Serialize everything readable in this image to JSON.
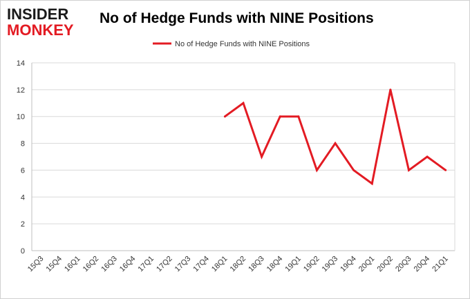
{
  "logo": {
    "line1": "INSIDER",
    "line2": "MONKEY"
  },
  "chart_data": {
    "type": "line",
    "title": "No of Hedge Funds with NINE Positions",
    "categories": [
      "15Q3",
      "15Q4",
      "16Q1",
      "16Q2",
      "16Q3",
      "16Q4",
      "17Q1",
      "17Q2",
      "17Q3",
      "17Q4",
      "18Q1",
      "18Q2",
      "18Q3",
      "18Q4",
      "19Q1",
      "19Q2",
      "19Q3",
      "19Q4",
      "20Q1",
      "20Q2",
      "20Q3",
      "20Q4",
      "21Q1"
    ],
    "series": [
      {
        "name": "No of Hedge Funds with NINE Positions",
        "values": [
          null,
          null,
          null,
          null,
          null,
          null,
          null,
          null,
          null,
          null,
          10,
          11,
          7,
          10,
          10,
          6,
          8,
          6,
          5,
          12,
          6,
          7,
          6
        ],
        "color": "#e31b23"
      }
    ],
    "ylim": [
      0,
      14
    ],
    "yticks": [
      0,
      2,
      4,
      6,
      8,
      10,
      12,
      14
    ],
    "grid": true,
    "legend_position": "top-center",
    "xlabel": "",
    "ylabel": ""
  }
}
